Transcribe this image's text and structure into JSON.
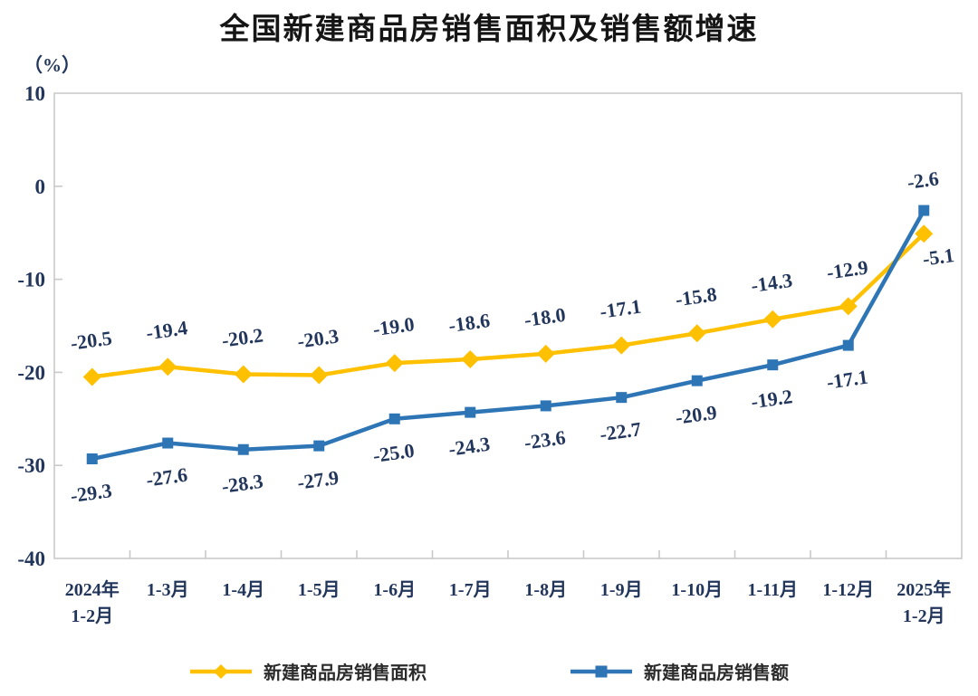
{
  "title": "全国新建商品房销售面积及销售额增速",
  "unit_label": "（%）",
  "colors": {
    "axis": "#c9c9c9",
    "tick_text": "#22365c",
    "data_label_text": "#22365c",
    "title_text": "#151515"
  },
  "chart_data": {
    "type": "line",
    "title": "全国新建商品房销售面积及销售额增速",
    "ylabel": "（%）",
    "categories": [
      "2024年\n1-2月",
      "1-3月",
      "1-4月",
      "1-5月",
      "1-6月",
      "1-7月",
      "1-8月",
      "1-9月",
      "1-10月",
      "1-11月",
      "1-12月",
      "2025年\n1-2月"
    ],
    "series": [
      {
        "name": "新建商品房销售面积",
        "color": "#FFC000",
        "marker": "diamond",
        "label_position": "above",
        "last_label_position": "below-right",
        "values": [
          -20.5,
          -19.4,
          -20.2,
          -20.3,
          -19.0,
          -18.6,
          -18.0,
          -17.1,
          -15.8,
          -14.3,
          -12.9,
          -5.1
        ]
      },
      {
        "name": "新建商品房销售额",
        "color": "#2E75B6",
        "marker": "square",
        "label_position": "below",
        "last_label_position": "above",
        "values": [
          -29.3,
          -27.6,
          -28.3,
          -27.9,
          -25.0,
          -24.3,
          -23.6,
          -22.7,
          -20.9,
          -19.2,
          -17.1,
          -2.6
        ]
      }
    ],
    "y_ticks": [
      10,
      0,
      -10,
      -20,
      -30,
      -40
    ],
    "ylim": [
      -40,
      10
    ],
    "grid": false,
    "legend_position": "bottom"
  }
}
